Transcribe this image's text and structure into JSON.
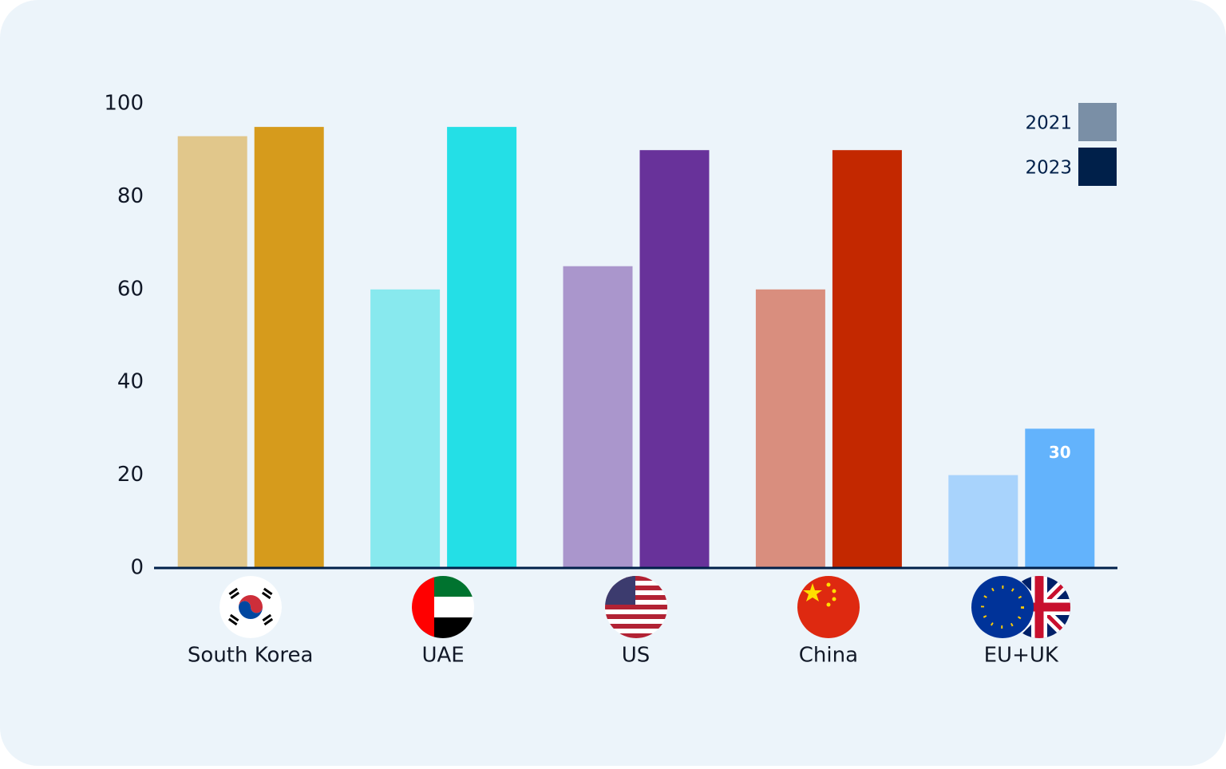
{
  "chart_data": {
    "type": "bar",
    "categories": [
      "South Korea",
      "UAE",
      "US",
      "China",
      "EU+UK"
    ],
    "series": [
      {
        "name": "2021",
        "color": "#7a8fa6",
        "colors": [
          "#e1c78b",
          "#88e9ee",
          "#aa96cc",
          "#d98e7e",
          "#a8d3fc"
        ],
        "values": [
          93,
          60,
          65,
          60,
          20
        ]
      },
      {
        "name": "2023",
        "color": "#00204a",
        "colors": [
          "#d69b1c",
          "#24dfe6",
          "#68329a",
          "#c32800",
          "#63b3fc"
        ],
        "values": [
          95,
          95,
          90,
          90,
          30
        ],
        "value_labels": [
          null,
          null,
          null,
          null,
          "30"
        ]
      }
    ],
    "ylim": [
      0,
      100
    ],
    "yticks": [
      0,
      20,
      40,
      60,
      80,
      100
    ],
    "grid": false,
    "legend": "top-right"
  }
}
